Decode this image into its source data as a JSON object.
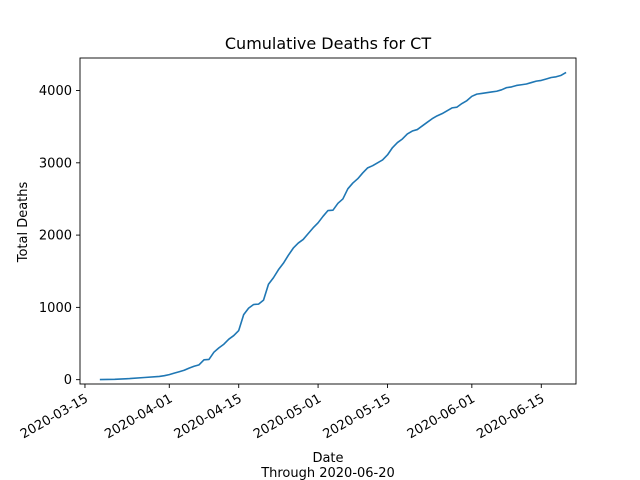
{
  "chart_data": {
    "type": "line",
    "title": "Cumulative Deaths for CT",
    "xlabel": "Date",
    "xlabel_sub": "Through 2020-06-20",
    "ylabel": "Total Deaths",
    "ylim": [
      -60,
      4450
    ],
    "xlim": [
      "2020-03-14",
      "2020-06-22"
    ],
    "grid": false,
    "legend": "none",
    "series_color": "#1f77b4",
    "y_ticks": [
      0,
      1000,
      2000,
      3000,
      4000
    ],
    "x_ticks": [
      "2020-03-15",
      "2020-04-01",
      "2020-04-15",
      "2020-05-01",
      "2020-05-15",
      "2020-06-01",
      "2020-06-15"
    ],
    "series": [
      {
        "x": [
          "2020-03-18",
          "2020-03-21",
          "2020-03-24",
          "2020-03-27",
          "2020-03-30",
          "2020-03-31",
          "2020-04-01",
          "2020-04-02",
          "2020-04-03",
          "2020-04-04",
          "2020-04-05",
          "2020-04-06",
          "2020-04-07",
          "2020-04-08",
          "2020-04-09",
          "2020-04-10",
          "2020-04-11",
          "2020-04-12",
          "2020-04-13",
          "2020-04-14",
          "2020-04-15",
          "2020-04-16",
          "2020-04-17",
          "2020-04-18",
          "2020-04-19",
          "2020-04-20",
          "2020-04-21",
          "2020-04-22",
          "2020-04-23",
          "2020-04-24",
          "2020-04-25",
          "2020-04-26",
          "2020-04-27",
          "2020-04-28",
          "2020-04-29",
          "2020-04-30",
          "2020-05-01",
          "2020-05-02",
          "2020-05-03",
          "2020-05-04",
          "2020-05-05",
          "2020-05-06",
          "2020-05-07",
          "2020-05-08",
          "2020-05-09",
          "2020-05-10",
          "2020-05-11",
          "2020-05-12",
          "2020-05-13",
          "2020-05-14",
          "2020-05-15",
          "2020-05-16",
          "2020-05-17",
          "2020-05-18",
          "2020-05-19",
          "2020-05-20",
          "2020-05-21",
          "2020-05-22",
          "2020-05-23",
          "2020-05-24",
          "2020-05-25",
          "2020-05-26",
          "2020-05-27",
          "2020-05-28",
          "2020-05-29",
          "2020-05-30",
          "2020-05-31",
          "2020-06-01",
          "2020-06-02",
          "2020-06-03",
          "2020-06-04",
          "2020-06-05",
          "2020-06-06",
          "2020-06-07",
          "2020-06-08",
          "2020-06-09",
          "2020-06-10",
          "2020-06-11",
          "2020-06-12",
          "2020-06-13",
          "2020-06-14",
          "2020-06-15",
          "2020-06-16",
          "2020-06-17",
          "2020-06-18",
          "2020-06-19",
          "2020-06-20"
        ],
        "y": [
          2,
          5,
          15,
          30,
          45,
          55,
          70,
          90,
          110,
          130,
          160,
          185,
          205,
          275,
          280,
          380,
          440,
          490,
          560,
          610,
          680,
          900,
          990,
          1040,
          1045,
          1100,
          1320,
          1410,
          1520,
          1610,
          1720,
          1820,
          1890,
          1940,
          2020,
          2100,
          2170,
          2260,
          2340,
          2345,
          2440,
          2500,
          2640,
          2720,
          2780,
          2860,
          2930,
          2960,
          3000,
          3040,
          3110,
          3210,
          3280,
          3330,
          3400,
          3440,
          3460,
          3510,
          3560,
          3610,
          3650,
          3680,
          3720,
          3760,
          3770,
          3820,
          3860,
          3920,
          3950,
          3960,
          3970,
          3980,
          3990,
          4010,
          4040,
          4050,
          4070,
          4080,
          4090,
          4110,
          4130,
          4140,
          4160,
          4180,
          4190,
          4210,
          4250
        ]
      }
    ]
  }
}
